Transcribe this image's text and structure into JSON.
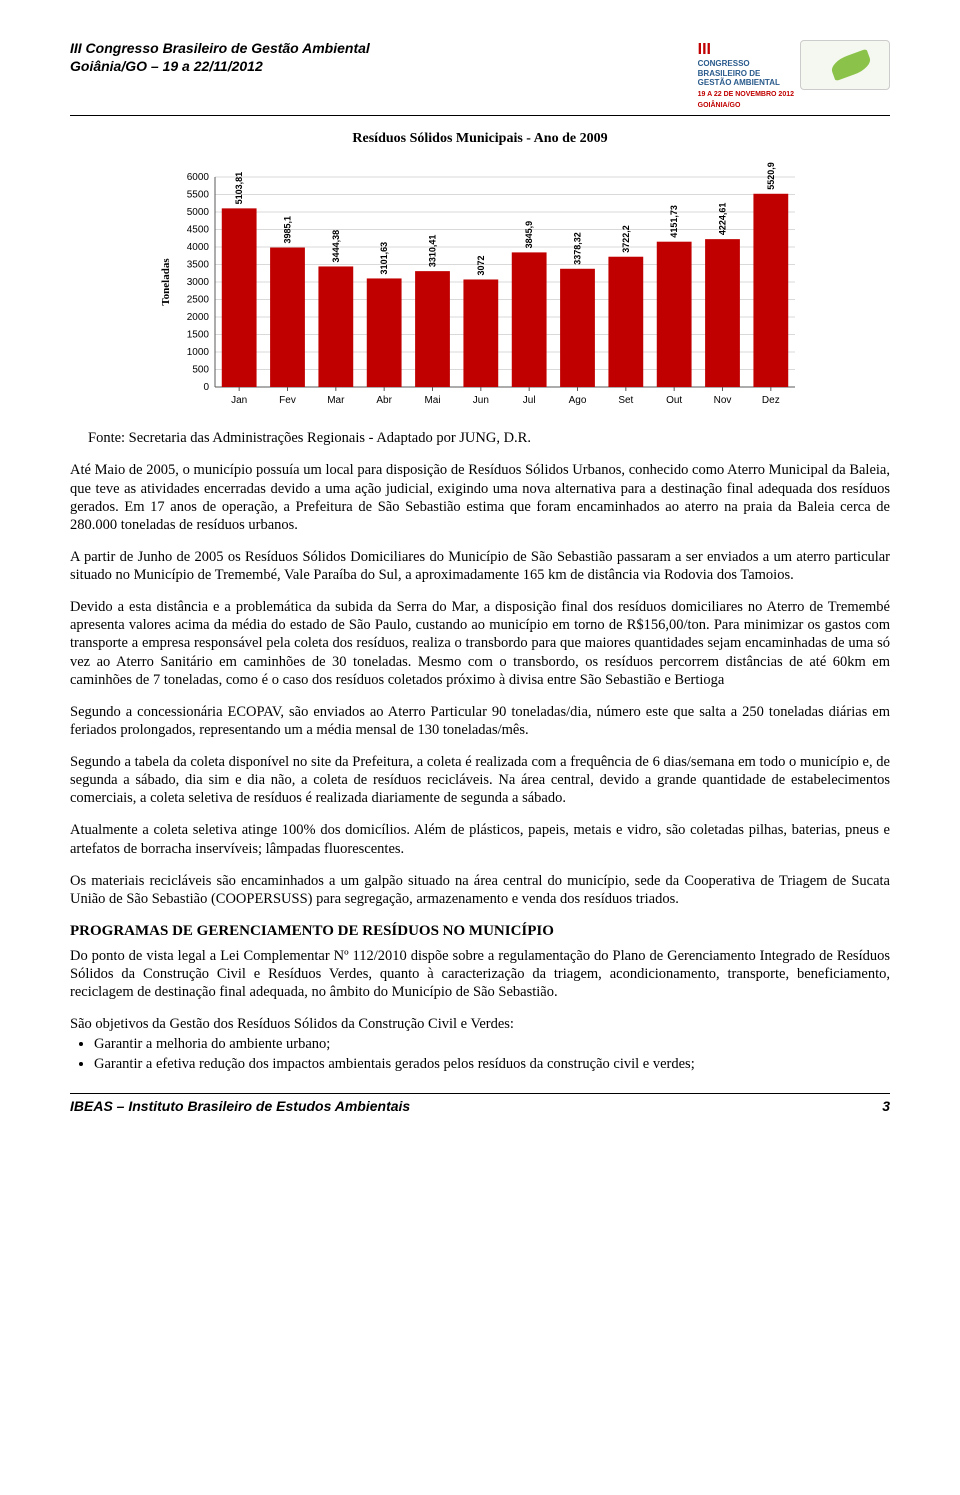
{
  "header": {
    "left_line1": "III Congresso Brasileiro de Gestão Ambiental",
    "left_line2": "Goiânia/GO – 19 a 22/11/2012",
    "right_roman": "III",
    "right_line1": "CONGRESSO",
    "right_line2": "BRASILEIRO DE",
    "right_line3": "GESTÃO AMBIENTAL",
    "right_date1": "19 A 22 DE NOVEMBRO 2012",
    "right_date2": "GOIÂNIA/GO"
  },
  "chart": {
    "title": "Resíduos Sólidos Municipais - Ano de 2009",
    "type": "bar",
    "ylabel": "Toneladas",
    "categories": [
      "Jan",
      "Fev",
      "Mar",
      "Abr",
      "Mai",
      "Jun",
      "Jul",
      "Ago",
      "Set",
      "Out",
      "Nov",
      "Dez"
    ],
    "values": [
      5103.81,
      3985.1,
      3444.38,
      3101.63,
      3310.41,
      3072,
      3845.9,
      3378.32,
      3722.2,
      4151.73,
      4224.61,
      5520.9
    ],
    "value_labels": [
      "5103,81",
      "3985,1",
      "3444,38",
      "3101,63",
      "3310,41",
      "3072",
      "3845,9",
      "3378,32",
      "3722,2",
      "4151,73",
      "4224,61",
      "5520,9"
    ],
    "ylim": [
      0,
      6000
    ],
    "ytick_step": 500,
    "yticks": [
      0,
      500,
      1000,
      1500,
      2000,
      2500,
      3000,
      3500,
      4000,
      4500,
      5000,
      5500,
      6000
    ],
    "bar_color": "#c00000",
    "bar_width": 0.72,
    "background_color": "#ffffff",
    "grid_color": "#d9d9d9",
    "axis_color": "#595959",
    "label_fontsize": 10,
    "tick_fontsize": 10,
    "value_label_fontsize": 9,
    "value_label_rotation": -90
  },
  "caption": "Fonte: Secretaria das Administrações Regionais - Adaptado por JUNG, D.R.",
  "paragraphs": {
    "p1": "Até Maio de 2005, o município possuía um local para disposição de Resíduos Sólidos Urbanos, conhecido como Aterro Municipal da Baleia, que teve as atividades encerradas devido a uma ação judicial, exigindo uma nova alternativa para a destinação final adequada dos resíduos gerados. Em 17 anos de operação, a Prefeitura de São Sebastião estima que foram encaminhados ao aterro na praia da Baleia cerca de 280.000 toneladas de resíduos urbanos.",
    "p2": "A partir de Junho de 2005 os Resíduos Sólidos Domiciliares do Município de São Sebastião passaram a ser enviados a um aterro particular situado no Município de Tremembé, Vale Paraíba do Sul, a aproximadamente 165 km de distância via Rodovia dos Tamoios.",
    "p3": "Devido a esta distância e a problemática da subida da Serra do Mar, a disposição final dos resíduos domiciliares no Aterro de Tremembé apresenta valores acima da média do estado de São Paulo, custando ao município em torno de R$156,00/ton. Para minimizar os gastos com transporte a empresa responsável pela coleta dos resíduos, realiza o transbordo para que maiores quantidades sejam encaminhadas de uma só vez ao Aterro Sanitário em caminhões de 30 toneladas. Mesmo com o transbordo, os resíduos percorrem distâncias de até 60km em caminhões de 7 toneladas, como é o caso dos resíduos coletados próximo à divisa entre São Sebastião e Bertioga",
    "p4": "Segundo a concessionária ECOPAV, são enviados ao Aterro Particular 90 toneladas/dia, número este que salta a 250 toneladas diárias em feriados prolongados, representando um a média mensal de 130 toneladas/mês.",
    "p5": "Segundo a tabela da coleta disponível no site da Prefeitura, a coleta é realizada com a frequência de 6 dias/semana em todo o município e, de segunda a sábado, dia sim e dia não, a coleta de resíduos recicláveis. Na área central, devido a grande quantidade de estabelecimentos comerciais, a coleta seletiva de resíduos é realizada diariamente de segunda a sábado.",
    "p6": "Atualmente a coleta seletiva atinge 100% dos domicílios. Além de plásticos, papeis, metais e vidro, são coletadas pilhas, baterias, pneus e artefatos de borracha inservíveis; lâmpadas fluorescentes.",
    "p7": "Os materiais recicláveis são encaminhados a um galpão situado na área central do município, sede da Cooperativa de Triagem de Sucata União de São Sebastião (COOPERSUSS) para segregação, armazenamento e venda dos resíduos triados."
  },
  "section_title": "PROGRAMAS DE GERENCIAMENTO DE RESÍDUOS NO MUNICÍPIO",
  "after_section": {
    "p8": "Do ponto de vista legal a Lei Complementar Nº 112/2010 dispõe sobre a regulamentação do Plano de Gerenciamento Integrado de Resíduos Sólidos da Construção Civil e Resíduos Verdes, quanto à caracterização da triagem, acondicionamento, transporte, beneficiamento, reciclagem de destinação final adequada, no âmbito do Município de São Sebastião.",
    "p9": "São objetivos da Gestão dos Resíduos Sólidos da Construção Civil e Verdes:",
    "bullets": [
      "Garantir a melhoria do ambiente urbano;",
      "Garantir a efetiva redução dos impactos ambientais gerados pelos resíduos da construção civil e verdes;"
    ]
  },
  "footer": {
    "left": "IBEAS – Instituto Brasileiro de Estudos Ambientais",
    "page": "3"
  }
}
